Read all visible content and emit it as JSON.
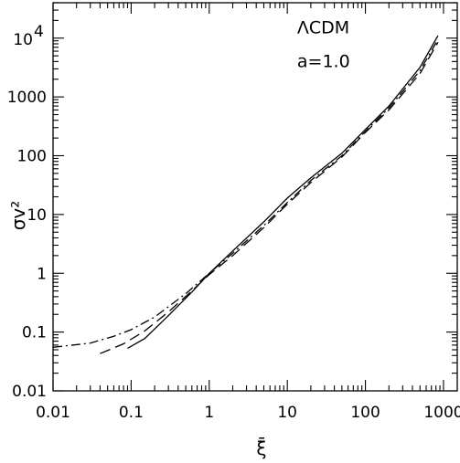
{
  "chart_data": {
    "type": "line",
    "title": "",
    "xlabel": "ξ̄",
    "ylabel": "σv²",
    "xscale": "log",
    "yscale": "log",
    "xlim": [
      0.01,
      1500
    ],
    "ylim": [
      0.01,
      40000
    ],
    "grid": false,
    "legend": "none",
    "annotations": [
      {
        "text": "ΛCDM",
        "x": 30,
        "y": 15000
      },
      {
        "text": "a=1.0",
        "x": 30,
        "y": 4000
      }
    ],
    "x_ticks": [
      {
        "value": 0.01,
        "label": "0.01"
      },
      {
        "value": 0.1,
        "label": "0.1"
      },
      {
        "value": 1,
        "label": "1"
      },
      {
        "value": 10,
        "label": "10"
      },
      {
        "value": 100,
        "label": "100"
      },
      {
        "value": 1000,
        "label": "1000"
      }
    ],
    "y_ticks": [
      {
        "value": 0.01,
        "label": "0.01"
      },
      {
        "value": 0.1,
        "label": "0.1"
      },
      {
        "value": 1,
        "label": "1"
      },
      {
        "value": 10,
        "label": "10"
      },
      {
        "value": 100,
        "label": "100"
      },
      {
        "value": 1000,
        "label": "1000"
      }
    ],
    "y_top_tick": {
      "value": 10000,
      "base": "10",
      "exp": "4"
    },
    "series": [
      {
        "style": "solid",
        "points": [
          [
            0.09,
            0.053
          ],
          [
            0.15,
            0.078
          ],
          [
            0.3,
            0.19
          ],
          [
            0.6,
            0.48
          ],
          [
            1,
            1.0
          ],
          [
            2,
            2.4
          ],
          [
            5,
            7.5
          ],
          [
            10,
            19
          ],
          [
            20,
            42
          ],
          [
            50,
            110
          ],
          [
            100,
            280
          ],
          [
            200,
            700
          ],
          [
            500,
            3200
          ],
          [
            850,
            11000
          ]
        ]
      },
      {
        "style": "dashed",
        "points": [
          [
            0.04,
            0.043
          ],
          [
            0.08,
            0.063
          ],
          [
            0.15,
            0.105
          ],
          [
            0.3,
            0.22
          ],
          [
            0.6,
            0.5
          ],
          [
            1,
            0.95
          ],
          [
            2,
            2.0
          ],
          [
            5,
            6.0
          ],
          [
            10,
            15
          ],
          [
            20,
            35
          ],
          [
            50,
            95
          ],
          [
            100,
            250
          ],
          [
            200,
            600
          ],
          [
            500,
            2500
          ],
          [
            850,
            8500
          ]
        ]
      },
      {
        "style": "dashdot",
        "points": [
          [
            0.01,
            0.055
          ],
          [
            0.03,
            0.065
          ],
          [
            0.06,
            0.085
          ],
          [
            0.1,
            0.11
          ],
          [
            0.2,
            0.18
          ],
          [
            0.5,
            0.45
          ],
          [
            1,
            1.0
          ],
          [
            2,
            2.2
          ],
          [
            5,
            6.5
          ],
          [
            10,
            16
          ],
          [
            20,
            38
          ],
          [
            50,
            100
          ],
          [
            100,
            260
          ],
          [
            200,
            650
          ],
          [
            500,
            2800
          ],
          [
            850,
            9500
          ]
        ]
      }
    ]
  }
}
